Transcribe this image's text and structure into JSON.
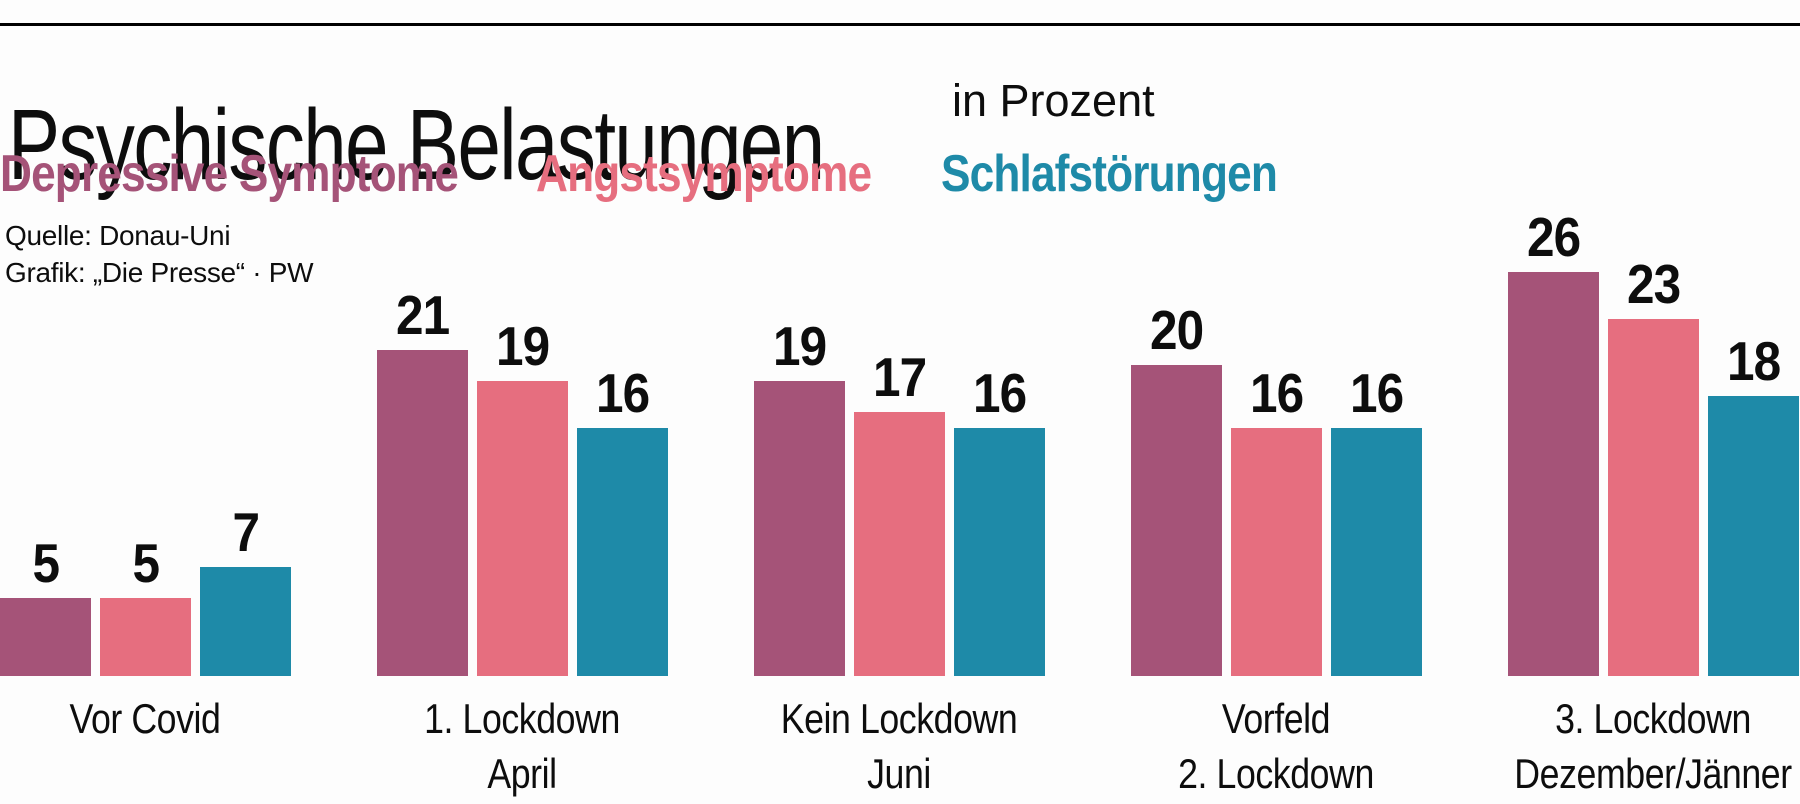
{
  "page": {
    "background": "#fdfdfd",
    "rule_color": "#000000",
    "text_color": "#0d0d0d"
  },
  "header": {
    "title": "Psychische Belastungen",
    "subtitle": "in Prozent"
  },
  "source": {
    "line1": "Quelle: Donau-Uni",
    "line2": "Grafik: „Die Presse“ · PW"
  },
  "chart_data": {
    "type": "bar",
    "title": "Psychische Belastungen",
    "unit_label": "in Prozent",
    "categories": [
      "Vor Covid",
      "1. Lockdown April",
      "Kein Lockdown Juni",
      "Vorfeld 2. Lockdown",
      "3. Lockdown Dezember/Jänner"
    ],
    "category_lines": [
      [
        "Vor Covid"
      ],
      [
        "1. Lockdown",
        "April"
      ],
      [
        "Kein Lockdown",
        "Juni"
      ],
      [
        "Vorfeld",
        "2. Lockdown"
      ],
      [
        "3. Lockdown",
        "Dezember/Jänner"
      ]
    ],
    "series": [
      {
        "name": "Depressive Symptome",
        "color": "#a55378",
        "values": [
          5,
          21,
          19,
          20,
          26
        ]
      },
      {
        "name": "Angstsymptome",
        "color": "#e66e7f",
        "values": [
          5,
          19,
          17,
          16,
          23
        ]
      },
      {
        "name": "Schlafstörungen",
        "color": "#1e8aa8",
        "values": [
          7,
          16,
          16,
          16,
          18
        ]
      }
    ],
    "value_labels": true,
    "axes_visible": false,
    "grid": false,
    "legend_position": "top-left",
    "ylim": [
      0,
      28
    ]
  }
}
